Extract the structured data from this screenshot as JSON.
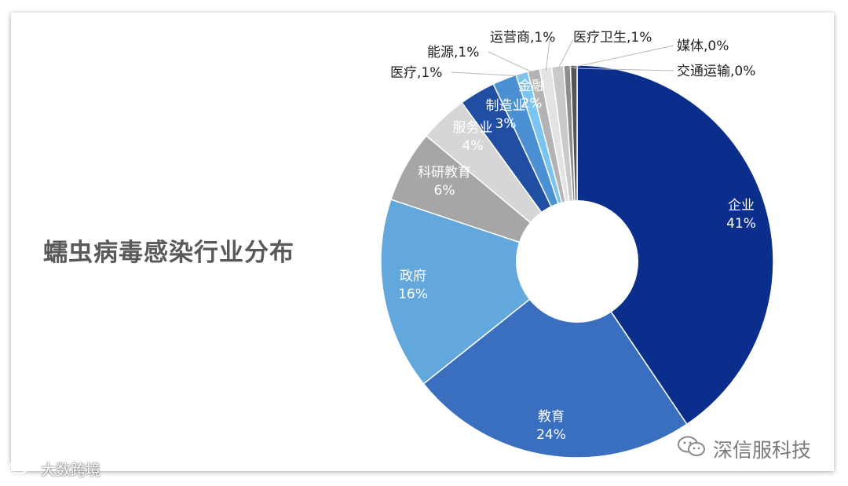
{
  "title": "蠕虫病毒感染行业分布",
  "watermark_text": "深信服科技",
  "brand_text": "大数跨境",
  "chart_data": {
    "type": "pie",
    "donut": true,
    "title": "蠕虫病毒感染行业分布",
    "unit": "%",
    "slices": [
      {
        "label": "企业",
        "value": 41,
        "pct": "41%",
        "color": "#0B2E8C"
      },
      {
        "label": "教育",
        "value": 24,
        "pct": "24%",
        "color": "#3A6FC0"
      },
      {
        "label": "政府",
        "value": 16,
        "pct": "16%",
        "color": "#63A8DC"
      },
      {
        "label": "科研教育",
        "value": 6,
        "pct": "6%",
        "color": "#A6A6A6"
      },
      {
        "label": "服务业",
        "value": 4,
        "pct": "4%",
        "color": "#D6D6D6"
      },
      {
        "label": "制造业",
        "value": 3,
        "pct": "3%",
        "color": "#1F4EA3"
      },
      {
        "label": "金融",
        "value": 2,
        "pct": "2%",
        "color": "#4A90D2"
      },
      {
        "label": "医疗",
        "value": 1,
        "pct": "1%",
        "color": "#79C4F0"
      },
      {
        "label": "能源",
        "value": 1,
        "pct": "1%",
        "color": "#B3B3B3"
      },
      {
        "label": "运营商",
        "value": 1,
        "pct": "1%",
        "color": "#E3E3E3"
      },
      {
        "label": "医疗卫生",
        "value": 1,
        "pct": "1%",
        "color": "#C9C9C9"
      },
      {
        "label": "媒体",
        "value": 0,
        "pct": "0%",
        "color": "#8C8C8C"
      },
      {
        "label": "交通运输",
        "value": 0,
        "pct": "0%",
        "color": "#555555"
      }
    ],
    "inner_labels": [
      {
        "text": "企业",
        "pct": "41%"
      },
      {
        "text": "教育",
        "pct": "24%"
      },
      {
        "text": "政府",
        "pct": "16%"
      },
      {
        "text": "科研教育",
        "pct": "6%"
      },
      {
        "text": "服务业",
        "pct": "4%"
      },
      {
        "text": "制造业",
        "pct": "3%"
      },
      {
        "text": "金融",
        "pct": "2%"
      }
    ],
    "callout_labels": [
      {
        "text": "医疗,1%"
      },
      {
        "text": "能源,1%"
      },
      {
        "text": "运营商,1%"
      },
      {
        "text": "医疗卫生,1%"
      },
      {
        "text": "媒体,0%"
      },
      {
        "text": "交通运输,0%"
      }
    ]
  }
}
